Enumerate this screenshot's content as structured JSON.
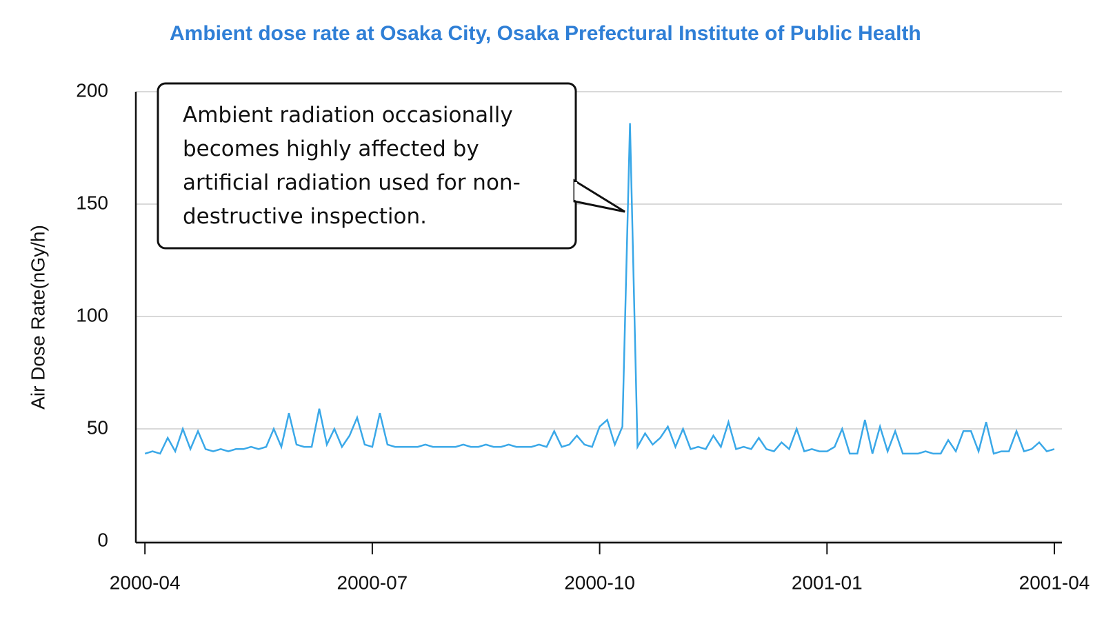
{
  "chart_data": {
    "type": "line",
    "title": "Ambient dose rate at Osaka City, Osaka Prefectural Institute of Public Health",
    "y_label": "Air Dose Rate(nGy/h)",
    "annotation": "Ambient radiation occasionally becomes highly affected by artificial radiation used for non-destructive inspection.",
    "color": "#3aa8e8",
    "grid": true,
    "xlim": [
      -0.12,
      12.1
    ],
    "xticks": [
      {
        "value": 0,
        "label": "2000-04"
      },
      {
        "value": 3,
        "label": "2000-07"
      },
      {
        "value": 6,
        "label": "2000-10"
      },
      {
        "value": 9,
        "label": "2001-01"
      },
      {
        "value": 12,
        "label": "2001-04"
      }
    ],
    "ylim": [
      0,
      200
    ],
    "yticks": [
      0,
      50,
      100,
      150,
      200
    ],
    "x": [
      0,
      0.1,
      0.2,
      0.3,
      0.4,
      0.5,
      0.6,
      0.7,
      0.8,
      0.9,
      1,
      1.1,
      1.2,
      1.3,
      1.4,
      1.5,
      1.6,
      1.7,
      1.8,
      1.9,
      2,
      2.1,
      2.2,
      2.3,
      2.4,
      2.5,
      2.6,
      2.7,
      2.8,
      2.9,
      3,
      3.1,
      3.2,
      3.3,
      3.4,
      3.5,
      3.6,
      3.7,
      3.8,
      3.9,
      4,
      4.1,
      4.2,
      4.3,
      4.4,
      4.5,
      4.6,
      4.7,
      4.8,
      4.9,
      5,
      5.1,
      5.2,
      5.3,
      5.4,
      5.5,
      5.6,
      5.7,
      5.8,
      5.9,
      6,
      6.1,
      6.2,
      6.3,
      6.4,
      6.5,
      6.6,
      6.7,
      6.8,
      6.9,
      7,
      7.1,
      7.2,
      7.3,
      7.4,
      7.5,
      7.6,
      7.7,
      7.8,
      7.9,
      8,
      8.1,
      8.2,
      8.3,
      8.4,
      8.5,
      8.6,
      8.7,
      8.8,
      8.9,
      9,
      9.1,
      9.2,
      9.3,
      9.4,
      9.5,
      9.6,
      9.7,
      9.8,
      9.9,
      10,
      10.1,
      10.2,
      10.3,
      10.4,
      10.5,
      10.6,
      10.7,
      10.8,
      10.9,
      11,
      11.1,
      11.2,
      11.3,
      11.4,
      11.5,
      11.6,
      11.7,
      11.8,
      11.9,
      12
    ],
    "values": [
      39,
      40,
      39,
      46,
      40,
      50,
      41,
      49,
      41,
      40,
      41,
      40,
      41,
      41,
      42,
      41,
      42,
      50,
      42,
      57,
      43,
      42,
      42,
      59,
      43,
      50,
      42,
      47,
      55,
      43,
      42,
      57,
      43,
      42,
      42,
      42,
      42,
      43,
      42,
      42,
      42,
      42,
      43,
      42,
      42,
      43,
      42,
      42,
      43,
      42,
      42,
      42,
      43,
      42,
      49,
      42,
      43,
      47,
      43,
      42,
      51,
      54,
      43,
      51,
      186,
      42,
      48,
      43,
      46,
      51,
      42,
      50,
      41,
      42,
      41,
      47,
      42,
      53,
      41,
      42,
      41,
      46,
      41,
      40,
      44,
      41,
      50,
      40,
      41,
      40,
      40,
      42,
      50,
      39,
      39,
      54,
      39,
      51,
      40,
      49,
      39,
      39,
      39,
      40,
      39,
      39,
      45,
      40,
      49,
      49,
      40,
      53,
      39,
      40,
      40,
      49,
      40,
      41,
      44,
      40,
      41
    ]
  }
}
